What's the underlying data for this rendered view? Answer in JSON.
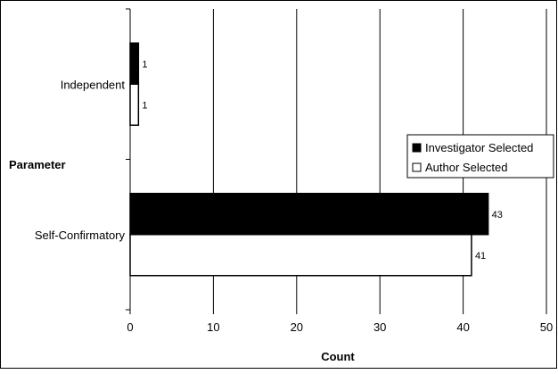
{
  "chart_data": {
    "type": "bar",
    "orientation": "horizontal",
    "categories": [
      "Independent",
      "Self-Confirmatory"
    ],
    "series": [
      {
        "name": "Investigator Selected",
        "values": [
          1,
          43
        ],
        "color": "#000000"
      },
      {
        "name": "Author Selected",
        "values": [
          1,
          41
        ],
        "color": "#ffffff"
      }
    ],
    "xlabel": "Count",
    "ylabel": "Parameter",
    "xlim": [
      0,
      50
    ],
    "xticks": [
      0,
      10,
      20,
      30,
      40,
      50
    ],
    "grid": "vertical",
    "legend": "right"
  }
}
